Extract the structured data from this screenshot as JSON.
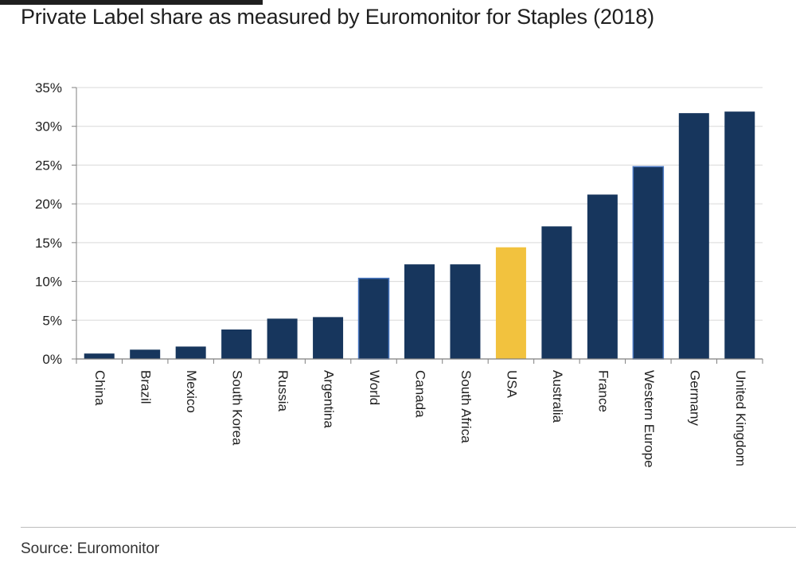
{
  "header": {
    "title": "Private Label share as measured by Euromonitor for Staples (2018)"
  },
  "footer": {
    "source": "Source: Euromonitor"
  },
  "colors": {
    "bar": "#17365d",
    "highlight": "#f2c23e",
    "grid": "#d9d9d9",
    "axis": "#7f7f7f"
  },
  "chart_data": {
    "type": "bar",
    "title": "Private Label share as measured by Euromonitor for Staples (2018)",
    "xlabel": "",
    "ylabel": "",
    "categories": [
      "China",
      "Brazil",
      "Mexico",
      "South Korea",
      "Russia",
      "Argentina",
      "World",
      "Canada",
      "South Africa",
      "USA",
      "Australia",
      "France",
      "Western Europe",
      "Germany",
      "United Kingdom"
    ],
    "values": [
      0.7,
      1.2,
      1.6,
      3.8,
      5.2,
      5.4,
      10.4,
      12.2,
      12.2,
      14.4,
      17.1,
      21.2,
      24.8,
      31.7,
      31.9
    ],
    "highlight": [
      "USA"
    ],
    "outlined": [
      "World",
      "Western Europe"
    ],
    "ylim": [
      0,
      35
    ],
    "yticks": [
      0,
      5,
      10,
      15,
      20,
      25,
      30,
      35
    ],
    "ytick_format": "percent",
    "grid": true,
    "legend": "none"
  }
}
